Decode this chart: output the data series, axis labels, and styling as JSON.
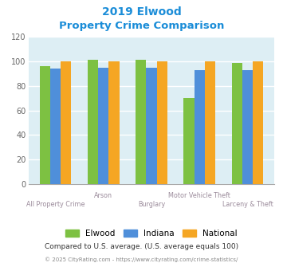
{
  "title_line1": "2019 Elwood",
  "title_line2": "Property Crime Comparison",
  "title_color": "#1b8dd8",
  "categories": [
    "All Property Crime",
    "Arson",
    "Burglary",
    "Motor Vehicle Theft",
    "Larceny & Theft"
  ],
  "elwood": [
    96,
    101,
    101,
    70,
    99
  ],
  "indiana": [
    94,
    95,
    95,
    93,
    93
  ],
  "national": [
    100,
    100,
    100,
    100,
    100
  ],
  "elwood_color": "#7dc142",
  "indiana_color": "#4f8fda",
  "national_color": "#f5a623",
  "ylim": [
    0,
    120
  ],
  "yticks": [
    0,
    20,
    40,
    60,
    80,
    100,
    120
  ],
  "bar_width": 0.22,
  "bg_color": "#ddeef4",
  "grid_color": "#ffffff",
  "xlabel_color": "#9b8b9b",
  "legend_labels": [
    "Elwood",
    "Indiana",
    "National"
  ],
  "footnote1": "Compared to U.S. average. (U.S. average equals 100)",
  "footnote2": "© 2025 CityRating.com - https://www.cityrating.com/crime-statistics/",
  "footnote1_color": "#333333",
  "footnote2_color": "#888888"
}
